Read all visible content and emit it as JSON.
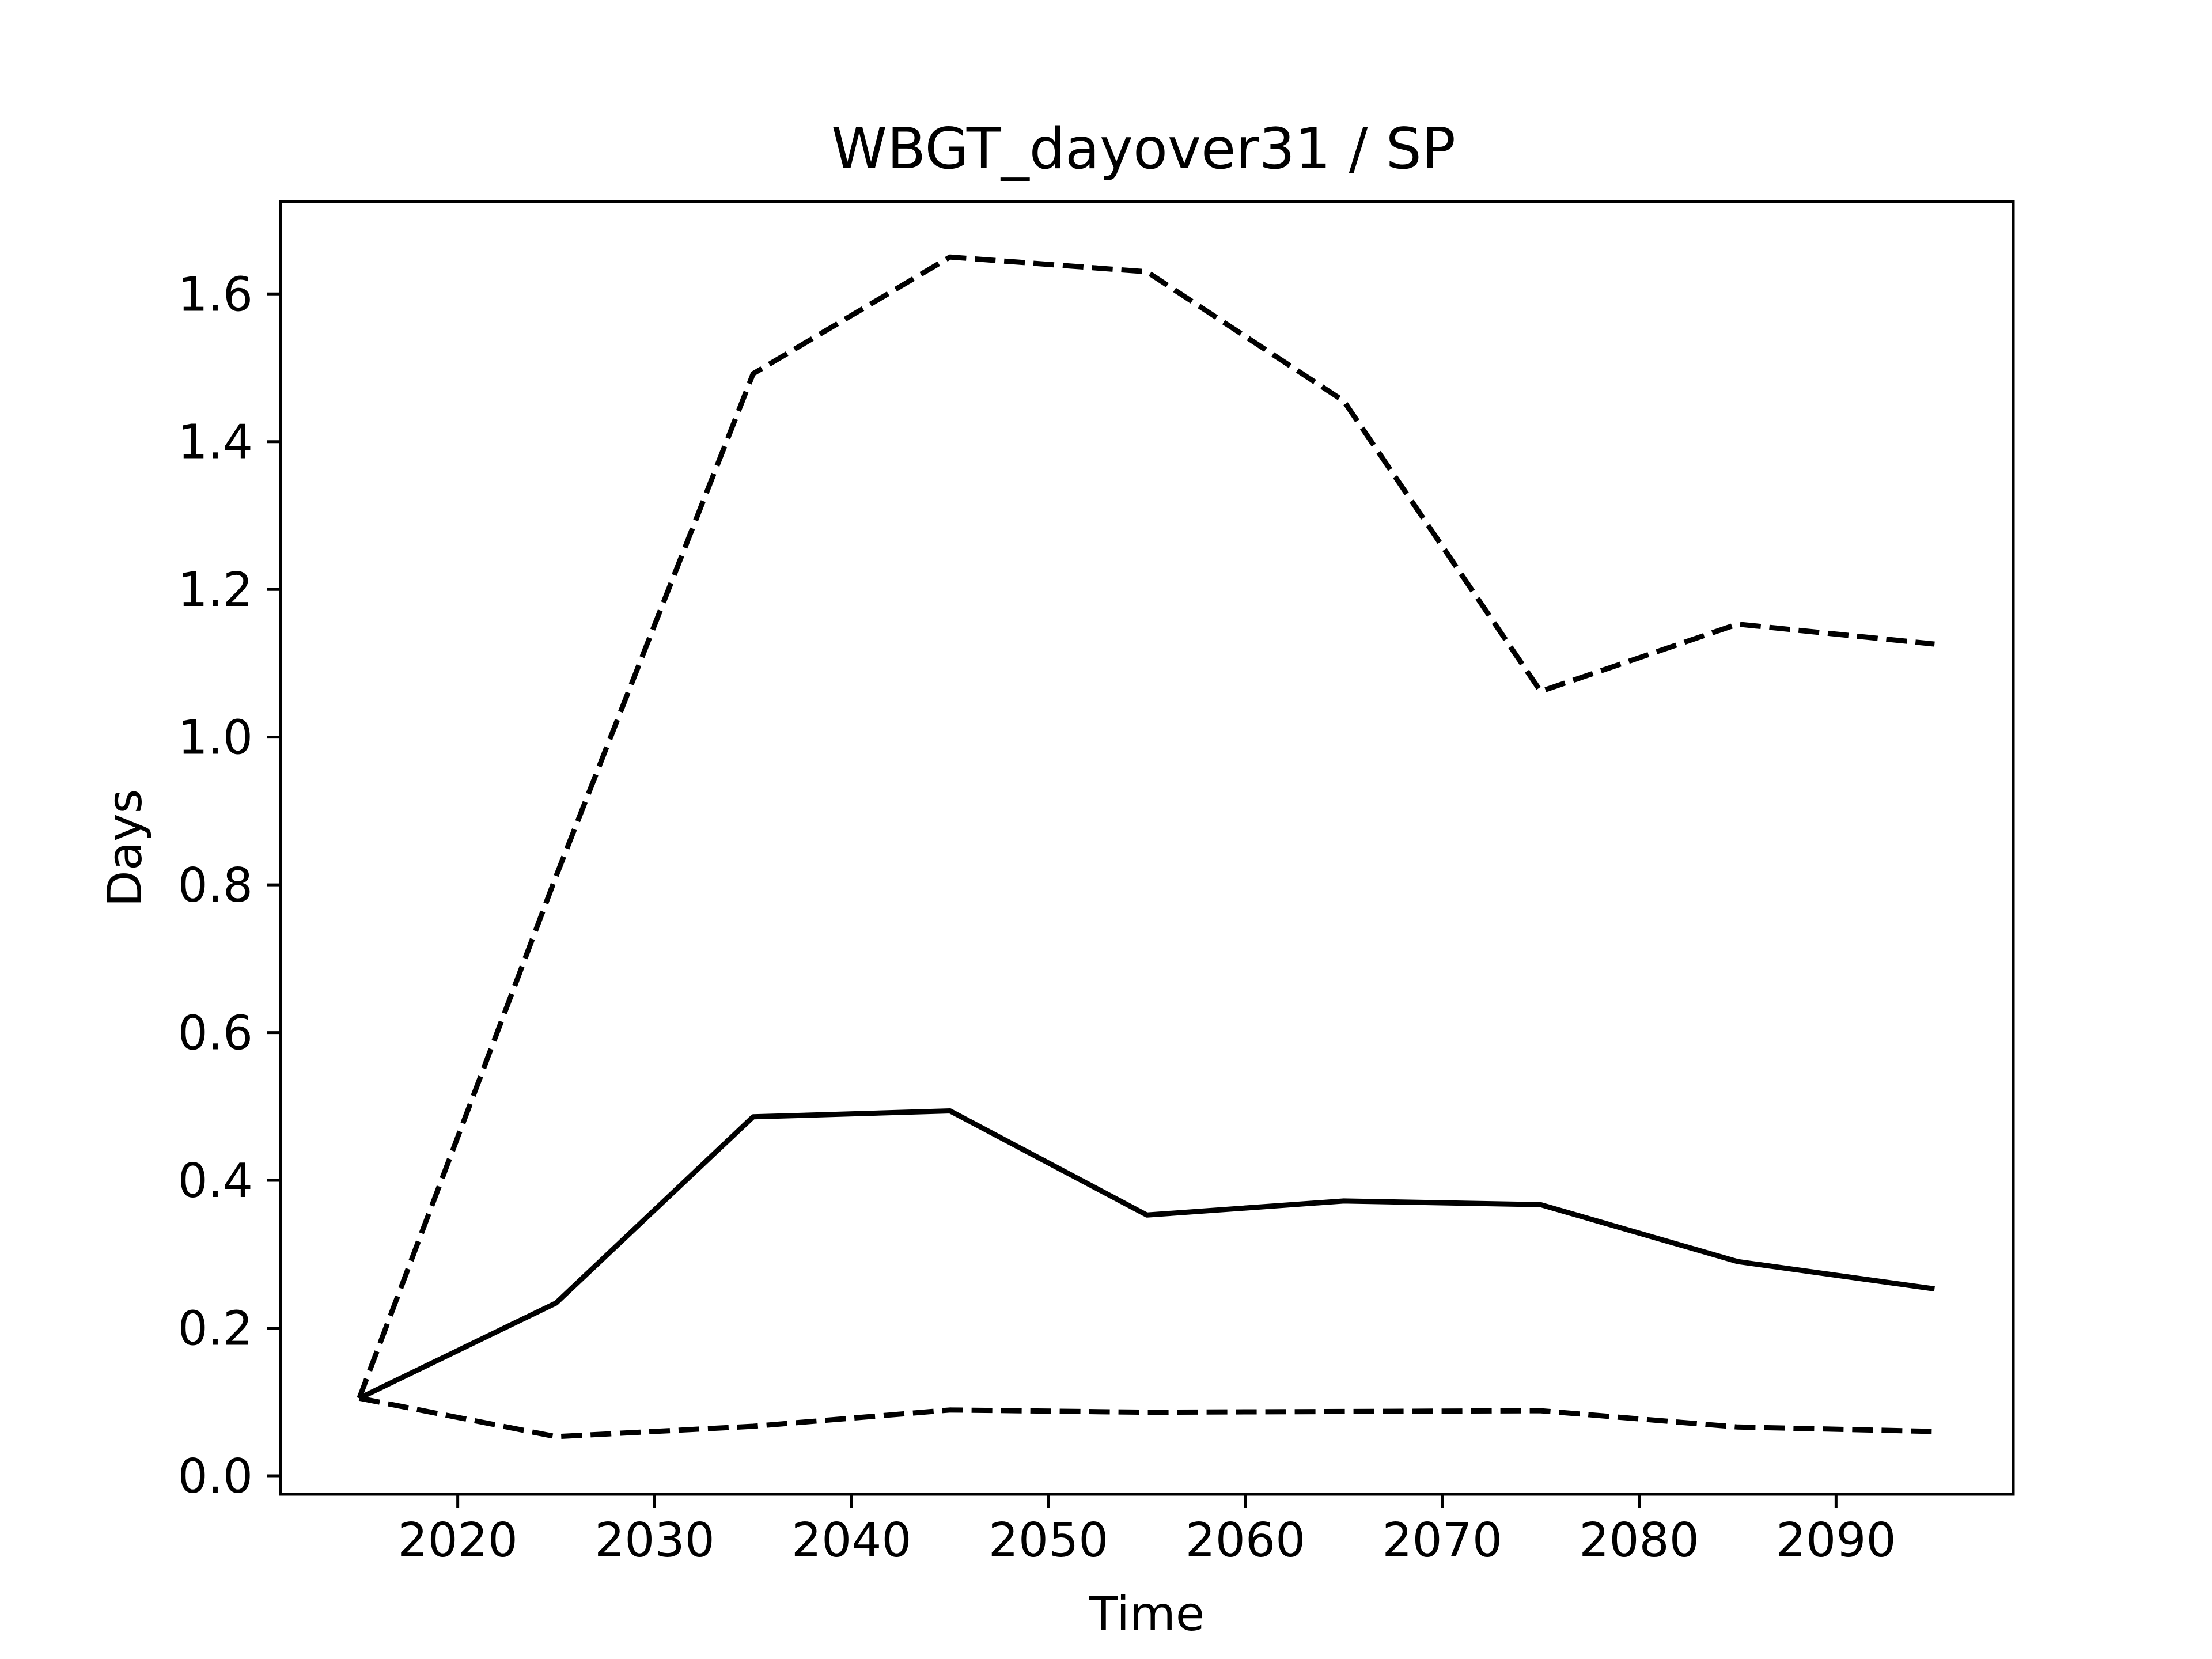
{
  "chart_data": {
    "type": "line",
    "title": "WBGT_dayover31 / SP",
    "xlabel": "Time",
    "ylabel": "Days",
    "xlim": [
      2011,
      2099
    ],
    "ylim": [
      -0.025,
      1.725
    ],
    "xticks": [
      2020,
      2030,
      2040,
      2050,
      2060,
      2070,
      2080,
      2090
    ],
    "yticks": [
      0.0,
      0.2,
      0.4,
      0.6,
      0.8,
      1.0,
      1.2,
      1.4,
      1.6
    ],
    "ytick_labels": [
      "0.0",
      "0.2",
      "0.4",
      "0.6",
      "0.8",
      "1.0",
      "1.2",
      "1.4",
      "1.6"
    ],
    "grid": false,
    "legend": false,
    "x": [
      2015,
      2025,
      2035,
      2045,
      2055,
      2065,
      2075,
      2085,
      2095
    ],
    "series": [
      {
        "style": "solid",
        "color": "#000000",
        "values": [
          0.105,
          0.234,
          0.486,
          0.494,
          0.353,
          0.372,
          0.367,
          0.29,
          0.253
        ]
      },
      {
        "style": "dashed",
        "color": "#000000",
        "values": [
          0.105,
          0.812,
          1.492,
          1.65,
          1.63,
          1.455,
          1.062,
          1.153,
          1.126
        ]
      },
      {
        "style": "dashed",
        "color": "#000000",
        "values": [
          0.105,
          0.053,
          0.067,
          0.089,
          0.086,
          0.087,
          0.088,
          0.066,
          0.06
        ]
      }
    ]
  }
}
